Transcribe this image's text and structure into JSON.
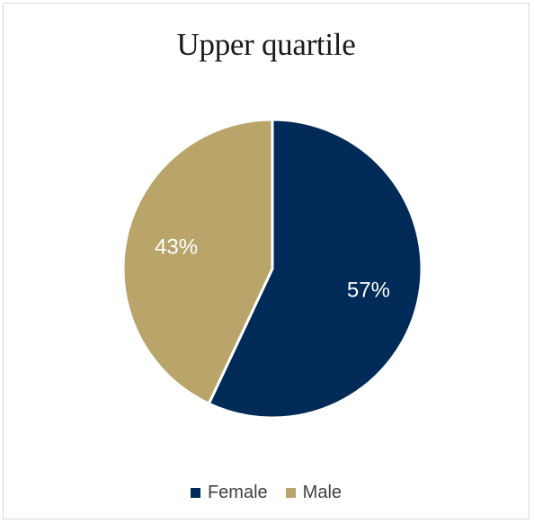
{
  "chart_data": {
    "type": "pie",
    "title": "Upper quartile",
    "categories": [
      "Female",
      "Male"
    ],
    "values": [
      57,
      43
    ],
    "data_labels": [
      "57%",
      "43%"
    ],
    "colors": [
      "#002a57",
      "#b9a46a"
    ],
    "legend_position": "bottom"
  }
}
